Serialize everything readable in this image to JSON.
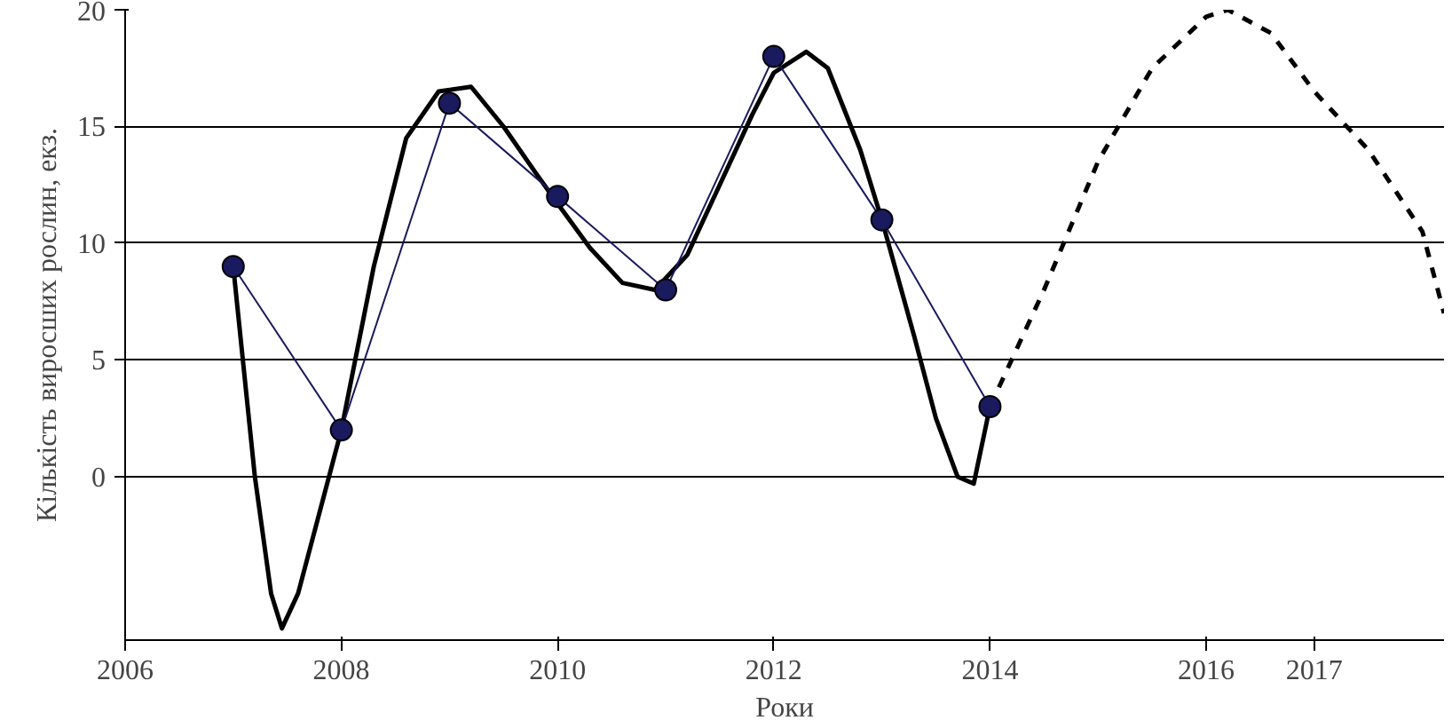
{
  "chart_data": {
    "type": "line",
    "xlabel": "Роки",
    "ylabel": "Кількість виросших рослин, екз.",
    "xlim": [
      2006,
      2018.2
    ],
    "ylim": [
      -7,
      20
    ],
    "xticks": [
      2006,
      2008,
      2010,
      2012,
      2014,
      2016,
      2017
    ],
    "yticks": [
      0,
      5,
      10,
      15,
      20
    ],
    "grid": "y",
    "series": [
      {
        "color": "#000000",
        "marker": "none",
        "line_style": "solid",
        "x": [
          2007,
          2007.2,
          2007.35,
          2007.45,
          2007.6,
          2007.8,
          2008,
          2008.3,
          2008.6,
          2008.9,
          2009.2,
          2009.5,
          2009.8,
          2010,
          2010.3,
          2010.6,
          2010.9,
          2011.2,
          2011.5,
          2011.8,
          2012,
          2012.3,
          2012.5,
          2012.8,
          2013,
          2013.3,
          2013.5,
          2013.7,
          2013.85,
          2014
        ],
        "values": [
          9,
          0,
          -5,
          -6.5,
          -5,
          -1.5,
          2,
          9,
          14.5,
          16.5,
          16.7,
          15,
          13,
          11.7,
          9.8,
          8.3,
          8,
          9.5,
          12.5,
          15.5,
          17.3,
          18.2,
          17.5,
          14,
          11,
          6,
          2.5,
          0,
          -0.3,
          3
        ]
      },
      {
        "color": "#000000",
        "marker": "none",
        "line_style": "dashed",
        "x": [
          2014,
          2014.5,
          2015,
          2015.5,
          2016,
          2016.2,
          2016.6,
          2017,
          2017.5,
          2018,
          2018.2
        ],
        "values": [
          3,
          8,
          13.5,
          17.5,
          19.7,
          20,
          19,
          16.5,
          14,
          10.5,
          7
        ]
      },
      {
        "color": "#1a1a5e",
        "marker": "circle",
        "line_style": "solid",
        "x": [
          2007,
          2008,
          2009,
          2010,
          2011,
          2012,
          2013,
          2014
        ],
        "values": [
          9,
          2,
          16,
          12,
          8,
          18,
          11,
          3
        ]
      }
    ]
  }
}
